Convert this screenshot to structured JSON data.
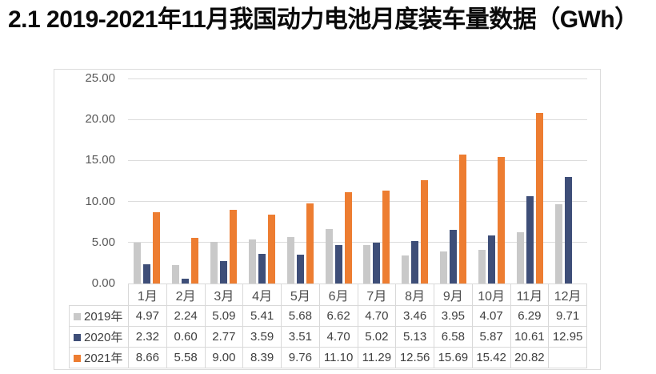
{
  "title": "2.1 2019-2021年11月我国动力电池月度装车量数据（GWh）",
  "chart_data": {
    "type": "bar",
    "title": "",
    "xlabel": "",
    "ylabel": "",
    "categories": [
      "1月",
      "2月",
      "3月",
      "4月",
      "5月",
      "6月",
      "7月",
      "8月",
      "9月",
      "10月",
      "11月",
      "12月"
    ],
    "series": [
      {
        "name": "2019年",
        "color": "#C9C9C9",
        "values": [
          4.97,
          2.24,
          5.09,
          5.41,
          5.68,
          6.62,
          4.7,
          3.46,
          3.95,
          4.07,
          6.29,
          9.71
        ]
      },
      {
        "name": "2020年",
        "color": "#3E4E78",
        "values": [
          2.32,
          0.6,
          2.77,
          3.59,
          3.51,
          4.7,
          5.02,
          5.13,
          6.58,
          5.87,
          10.61,
          12.95
        ]
      },
      {
        "name": "2021年",
        "color": "#ED7D31",
        "values": [
          8.66,
          5.58,
          9.0,
          8.39,
          9.76,
          11.1,
          11.29,
          12.56,
          15.69,
          15.42,
          20.82,
          null
        ]
      }
    ],
    "ylim": [
      0,
      25
    ],
    "ytick_step": 5,
    "value_decimals": 2,
    "grid": true,
    "legend_position": "table-left",
    "colors": {
      "gridline": "#DCDCDC",
      "axis_line": "#BFBFBF",
      "axis_text": "#595959",
      "table_border": "#D9D9D9",
      "table_text": "#404040"
    }
  }
}
